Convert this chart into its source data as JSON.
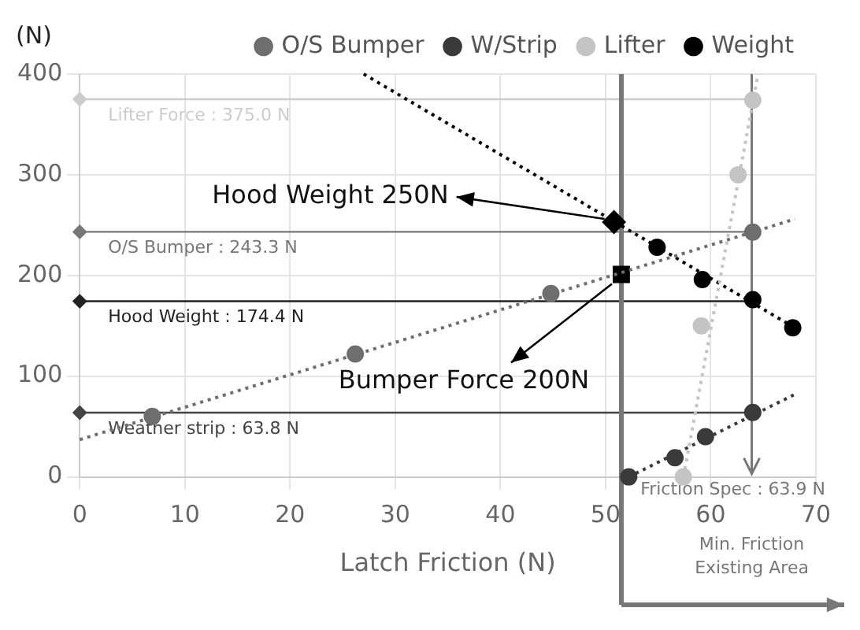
{
  "chart_data": {
    "type": "scatter",
    "ylabel": "(N)",
    "xlabel": "Latch Friction (N)",
    "xlim": [
      0,
      70
    ],
    "xticks": [
      0,
      10,
      20,
      30,
      40,
      50,
      60,
      70
    ],
    "ylim": [
      0,
      400
    ],
    "yticks": [
      0,
      100,
      200,
      300,
      400
    ],
    "grid": true,
    "legend": "top",
    "marker": "circle",
    "series": [
      {
        "name": "O/S Bumper",
        "color": "#6e6e6e",
        "x": [
          6.9,
          26.2,
          44.8,
          64
        ],
        "values": [
          60,
          122,
          182,
          243
        ]
      },
      {
        "name": "W/Strip",
        "color": "#3a3a3a",
        "x": [
          52.2,
          56.6,
          59.5,
          64
        ],
        "values": [
          0,
          19,
          40,
          64
        ]
      },
      {
        "name": "Lifter",
        "color": "#c4c4c4",
        "x": [
          57.4,
          59.1,
          62.6,
          64
        ],
        "values": [
          0,
          150,
          300,
          374
        ]
      },
      {
        "name": "Weight",
        "color": "#000000",
        "x": [
          54.9,
          59.2,
          64,
          67.8
        ],
        "values": [
          228,
          196,
          176,
          148
        ]
      },
      {
        "type": "line",
        "color": "#6e6e6e",
        "line_style": "dotted",
        "marker": "none",
        "x": [
          0,
          68
        ],
        "values": [
          37,
          256
        ]
      },
      {
        "type": "line",
        "color": "#3a3a3a",
        "line_style": "dotted",
        "marker": "none",
        "x": [
          52.2,
          68
        ],
        "values": [
          0,
          82
        ]
      },
      {
        "type": "line",
        "color": "#c4c4c4",
        "line_style": "dotted",
        "marker": "none",
        "x": [
          57.4,
          64.5
        ],
        "values": [
          0,
          400
        ]
      },
      {
        "type": "line",
        "color": "#000000",
        "line_style": "dotted",
        "marker": "none",
        "x": [
          27,
          68
        ],
        "values": [
          400,
          148
        ]
      },
      {
        "marker": "diamond",
        "colors": [
          "#cccccc",
          "#777777",
          "#222222",
          "#444444"
        ],
        "x": [
          0,
          0,
          0,
          0
        ],
        "values": [
          375,
          243.3,
          174.4,
          63.8
        ]
      },
      {
        "color": "#000000",
        "marker": "diamond",
        "x": [
          50.8
        ],
        "values": [
          253
        ]
      },
      {
        "color": "#000000",
        "marker": "square",
        "x": [
          51.5
        ],
        "values": [
          201
        ]
      }
    ],
    "ref_lines": [
      {
        "axis": "y",
        "value": 375,
        "label": "Lifter Force : 375.0 N",
        "color": "#cccccc"
      },
      {
        "axis": "y",
        "value": 243.3,
        "label": "O/S Bumper : 243.3 N",
        "color": "#777777"
      },
      {
        "axis": "y",
        "value": 174.4,
        "label": "Hood Weight : 174.4 N",
        "color": "#222222"
      },
      {
        "axis": "y",
        "value": 63.8,
        "label": "Weather strip : 63.8 N",
        "color": "#444444"
      },
      {
        "axis": "x",
        "value": 63.9,
        "label": "Friction Spec : 63.9 N",
        "color": "#777777"
      },
      {
        "axis": "x",
        "value": 51.5,
        "label": null,
        "color": "#777777"
      }
    ],
    "annotations": [
      {
        "text": "Hood Weight 250N",
        "x": 50.8,
        "y": 253
      },
      {
        "text": "Bumper Force 200N",
        "x": 51.5,
        "y": 201
      },
      "Min. Friction Existing Area"
    ]
  }
}
